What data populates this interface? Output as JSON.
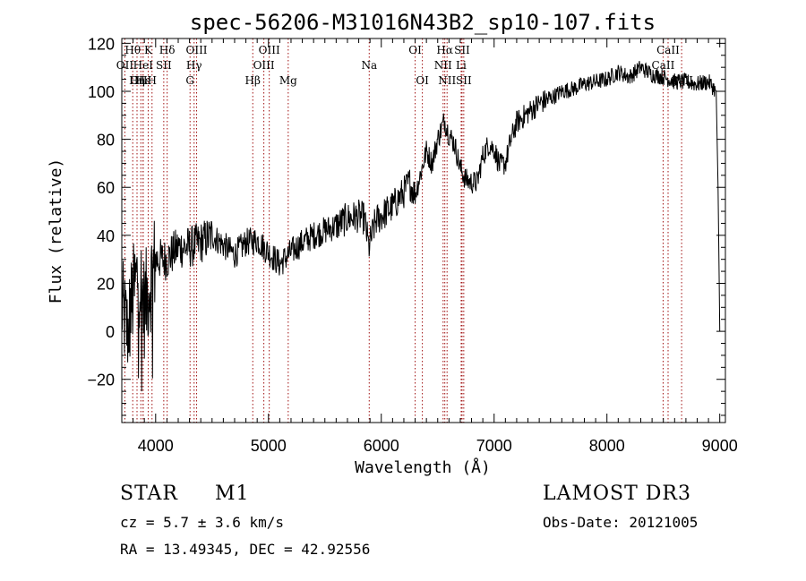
{
  "chart_data": {
    "type": "line",
    "title": "spec-56206-M31016N43B2_sp10-107.fits",
    "xlabel": "Wavelength (Å)",
    "ylabel": "Flux (relative)",
    "xlim": [
      3700,
      9050
    ],
    "ylim": [
      -38,
      122
    ],
    "xticks": [
      {
        "value": 4000,
        "label": "4000"
      },
      {
        "value": 5000,
        "label": "5000"
      },
      {
        "value": 6000,
        "label": "6000"
      },
      {
        "value": 7000,
        "label": "7000"
      },
      {
        "value": 8000,
        "label": "8000"
      },
      {
        "value": 9000,
        "label": "9000"
      }
    ],
    "yticks": [
      {
        "value": -20,
        "label": "−20"
      },
      {
        "value": 0,
        "label": "0"
      },
      {
        "value": 20,
        "label": "20"
      },
      {
        "value": 40,
        "label": "40"
      },
      {
        "value": 60,
        "label": "60"
      },
      {
        "value": 80,
        "label": "80"
      },
      {
        "value": 100,
        "label": "100"
      },
      {
        "value": 120,
        "label": "120"
      }
    ],
    "series": [
      {
        "name": "flux",
        "x": [
          3700,
          3750,
          3800,
          3850,
          3900,
          3950,
          4000,
          4100,
          4200,
          4300,
          4400,
          4500,
          4600,
          4700,
          4800,
          4900,
          5000,
          5100,
          5200,
          5300,
          5400,
          5500,
          5600,
          5700,
          5800,
          5850,
          5890,
          5950,
          6000,
          6100,
          6200,
          6250,
          6300,
          6350,
          6400,
          6450,
          6500,
          6560,
          6600,
          6650,
          6700,
          6750,
          6800,
          6850,
          6900,
          6950,
          7000,
          7050,
          7100,
          7150,
          7200,
          7300,
          7400,
          7500,
          7600,
          7700,
          7800,
          7900,
          8000,
          8100,
          8200,
          8300,
          8400,
          8500,
          8600,
          8700,
          8800,
          8900,
          8970,
          8990,
          9000
        ],
        "y": [
          10,
          0,
          15,
          25,
          10,
          20,
          30,
          30,
          35,
          35,
          37,
          40,
          36,
          32,
          37,
          38,
          33,
          28,
          33,
          37,
          40,
          42,
          44,
          47,
          48,
          47,
          35,
          46,
          48,
          52,
          58,
          62,
          57,
          66,
          75,
          70,
          80,
          88,
          82,
          78,
          68,
          63,
          62,
          62,
          73,
          78,
          76,
          69,
          70,
          80,
          87,
          91,
          95,
          97,
          100,
          101,
          103,
          104,
          105,
          108,
          106,
          110,
          107,
          106,
          104,
          104,
          103,
          104,
          100,
          85,
          0
        ]
      }
    ],
    "emission_lines": [
      {
        "label": "Hθ",
        "wavelength": 3797,
        "row": 0
      },
      {
        "label": "OII",
        "wavelength": 3727,
        "row": 1
      },
      {
        "label": "OIII",
        "wavelength": 3869,
        "row": 2
      },
      {
        "label": "Hε",
        "wavelength": 3889,
        "row": 2
      },
      {
        "label": "K",
        "wavelength": 3934,
        "row": 0
      },
      {
        "label": "HeI",
        "wavelength": 3889,
        "row": 1
      },
      {
        "label": "Hη",
        "wavelength": 3835,
        "row": 2
      },
      {
        "label": "H",
        "wavelength": 3968,
        "row": 2
      },
      {
        "label": "Hδ",
        "wavelength": 4102,
        "row": 0
      },
      {
        "label": "SII",
        "wavelength": 4072,
        "row": 1
      },
      {
        "label": "OIII",
        "wavelength": 4363,
        "row": 0
      },
      {
        "label": "Hγ",
        "wavelength": 4341,
        "row": 1
      },
      {
        "label": "G",
        "wavelength": 4305,
        "row": 2
      },
      {
        "label": "Hβ",
        "wavelength": 4861,
        "row": 2
      },
      {
        "label": "OIII",
        "wavelength": 4959,
        "row": 1
      },
      {
        "label": "OIII",
        "wavelength": 5007,
        "row": 0
      },
      {
        "label": "Mg",
        "wavelength": 5175,
        "row": 2
      },
      {
        "label": "Na",
        "wavelength": 5893,
        "row": 1
      },
      {
        "label": "OI",
        "wavelength": 6300,
        "row": 0
      },
      {
        "label": "OI",
        "wavelength": 6364,
        "row": 2
      },
      {
        "label": "Hα",
        "wavelength": 6563,
        "row": 0
      },
      {
        "label": "NII",
        "wavelength": 6548,
        "row": 1
      },
      {
        "label": "NII",
        "wavelength": 6583,
        "row": 2
      },
      {
        "label": "SII",
        "wavelength": 6716,
        "row": 0
      },
      {
        "label": "Li",
        "wavelength": 6708,
        "row": 1
      },
      {
        "label": "SII",
        "wavelength": 6731,
        "row": 2
      },
      {
        "label": "CaII",
        "wavelength": 8542,
        "row": 0
      },
      {
        "label": "CaII",
        "wavelength": 8498,
        "row": 1
      },
      {
        "label": "CaII",
        "wavelength": 8662,
        "row": 2
      }
    ]
  },
  "info": {
    "object_class": "STAR",
    "subclass": "M1",
    "survey": "LAMOST DR3",
    "cz": "cz = 5.7 ± 3.6 km/s",
    "obs_date": "Obs-Date: 20121005",
    "coords": "RA =  13.49345, DEC =  42.92556"
  },
  "colors": {
    "spectrum": "#000000",
    "emission_line": "#a01010",
    "axes": "#000000"
  }
}
